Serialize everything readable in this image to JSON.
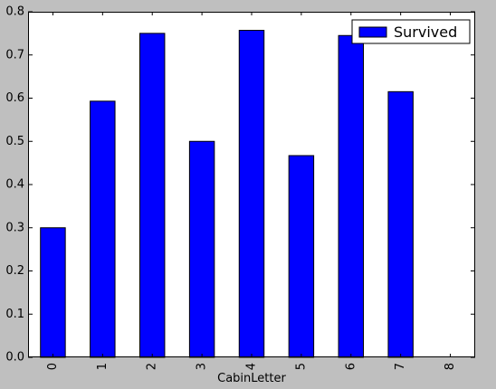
{
  "chart_data": {
    "type": "bar",
    "categories": [
      "0",
      "1",
      "2",
      "3",
      "4",
      "5",
      "6",
      "7",
      "8"
    ],
    "series": [
      {
        "name": "Survived",
        "values": [
          0.3,
          0.593,
          0.75,
          0.5,
          0.757,
          0.467,
          0.745,
          0.615,
          0.0
        ],
        "color": "#0000ff"
      }
    ],
    "title": "",
    "xlabel": "CabinLetter",
    "ylabel": "",
    "ylim": [
      0,
      0.8
    ],
    "yticks": [
      "0.0",
      "0.1",
      "0.2",
      "0.3",
      "0.4",
      "0.5",
      "0.6",
      "0.7",
      "0.8"
    ],
    "grid": false,
    "legend_position": "top-right"
  }
}
